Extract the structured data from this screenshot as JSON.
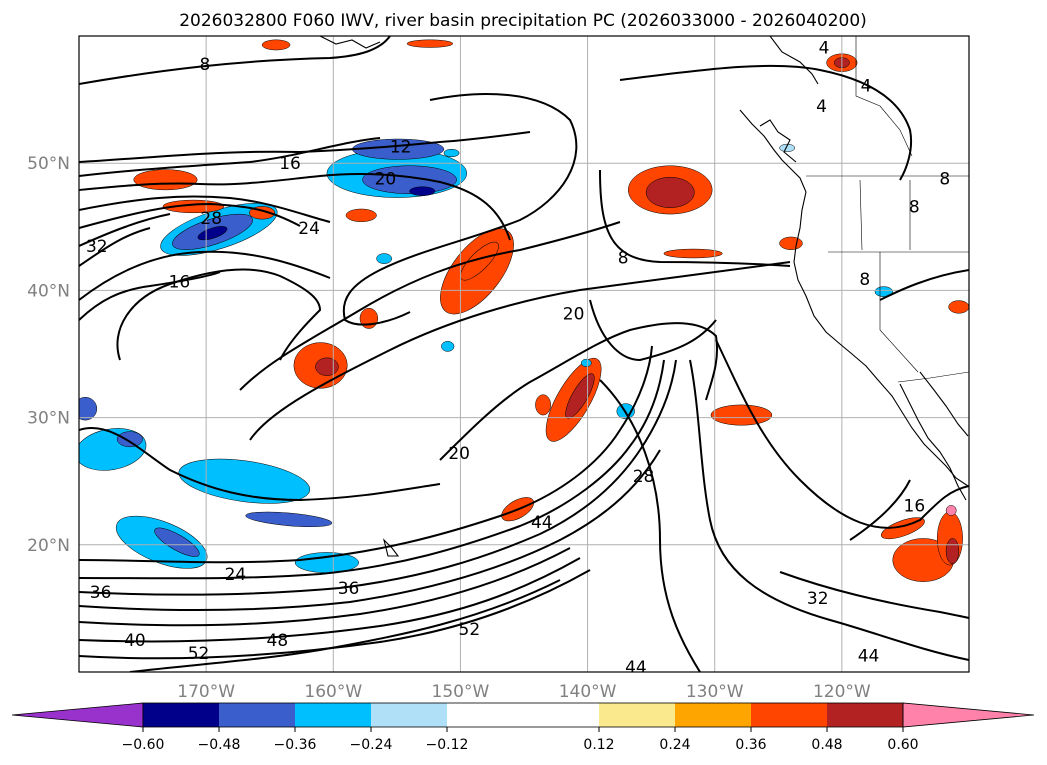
{
  "chart_data": {
    "type": "heatmap",
    "title": "2026032800 F060 IWV, river basin precipitation PC (2026033000 - 2026040200)",
    "xlabel": "",
    "ylabel": "",
    "x_axis": {
      "range": [
        -180,
        -110
      ],
      "ticks": [
        -170,
        -160,
        -150,
        -140,
        -130,
        -120
      ],
      "tick_labels": [
        "170°W",
        "160°W",
        "150°W",
        "140°W",
        "130°W",
        "120°W"
      ]
    },
    "y_axis": {
      "range": [
        10,
        60
      ],
      "ticks": [
        20,
        30,
        40,
        50
      ],
      "tick_labels": [
        "20°N",
        "30°N",
        "40°N",
        "50°N"
      ]
    },
    "grid": true,
    "colorbar": {
      "orientation": "horizontal",
      "extend": "both",
      "boundaries": [
        -0.72,
        -0.6,
        -0.48,
        -0.36,
        -0.24,
        -0.12,
        0.12,
        0.24,
        0.36,
        0.48,
        0.6,
        0.72
      ],
      "tick_values": [
        -0.6,
        -0.48,
        -0.36,
        -0.24,
        -0.12,
        0.12,
        0.24,
        0.36,
        0.48,
        0.6
      ],
      "tick_labels": [
        "−0.60",
        "−0.48",
        "−0.36",
        "−0.24",
        "−0.12",
        "0.12",
        "0.24",
        "0.36",
        "0.48",
        "0.60"
      ],
      "colors": [
        "#9932cc",
        "#00008b",
        "#3a5fcd",
        "#00bfff",
        "#afe0f8",
        "#ffffff",
        "#fbe98e",
        "#ffa500",
        "#ff4500",
        "#b22222",
        "#ff82ab"
      ]
    },
    "contours": {
      "field": "IWV",
      "color": "#000000",
      "labels": [
        {
          "text": "8",
          "lon": -170.1,
          "lat": 57.8
        },
        {
          "text": "12",
          "lon": -154.7,
          "lat": 51.3
        },
        {
          "text": "16",
          "lon": -163.4,
          "lat": 50.0
        },
        {
          "text": "20",
          "lon": -155.9,
          "lat": 48.8
        },
        {
          "text": "28",
          "lon": -169.6,
          "lat": 45.7
        },
        {
          "text": "24",
          "lon": -161.9,
          "lat": 44.9
        },
        {
          "text": "32",
          "lon": -178.6,
          "lat": 43.5
        },
        {
          "text": "16",
          "lon": -172.1,
          "lat": 40.7
        },
        {
          "text": "8",
          "lon": -137.2,
          "lat": 42.6
        },
        {
          "text": "8",
          "lon": -118.2,
          "lat": 40.9
        },
        {
          "text": "20",
          "lon": -141.1,
          "lat": 38.2
        },
        {
          "text": "20",
          "lon": -150.1,
          "lat": 27.2
        },
        {
          "text": "28",
          "lon": -135.6,
          "lat": 25.4
        },
        {
          "text": "44",
          "lon": -143.6,
          "lat": 21.8
        },
        {
          "text": "16",
          "lon": -114.3,
          "lat": 23.1
        },
        {
          "text": "24",
          "lon": -167.7,
          "lat": 17.7
        },
        {
          "text": "36",
          "lon": -178.3,
          "lat": 16.3
        },
        {
          "text": "36",
          "lon": -158.8,
          "lat": 16.6
        },
        {
          "text": "32",
          "lon": -121.9,
          "lat": 15.8
        },
        {
          "text": "40",
          "lon": -175.6,
          "lat": 12.5
        },
        {
          "text": "48",
          "lon": -164.4,
          "lat": 12.5
        },
        {
          "text": "52",
          "lon": -149.3,
          "lat": 13.4
        },
        {
          "text": "52",
          "lon": -170.6,
          "lat": 11.5
        },
        {
          "text": "44",
          "lon": -136.2,
          "lat": 10.4
        },
        {
          "text": "44",
          "lon": -117.9,
          "lat": 11.3
        },
        {
          "text": "4",
          "lon": -121.4,
          "lat": 59.1
        },
        {
          "text": "4",
          "lon": -118.1,
          "lat": 56.1
        },
        {
          "text": "4",
          "lon": -121.6,
          "lat": 54.5
        },
        {
          "text": "8",
          "lon": -114.3,
          "lat": 46.6
        },
        {
          "text": "8",
          "lon": -111.9,
          "lat": 48.8
        }
      ]
    },
    "precip_pc_regions": [
      {
        "center": [
          -169.0,
          44.8
        ],
        "rx": 4.8,
        "ry": 1.5,
        "rot": -18,
        "level": -0.36
      },
      {
        "center": [
          -169.5,
          44.6
        ],
        "rx": 3.3,
        "ry": 1.0,
        "rot": -18,
        "level": -0.48
      },
      {
        "center": [
          -169.5,
          44.5
        ],
        "rx": 1.2,
        "ry": 0.4,
        "rot": -18,
        "level": -0.6
      },
      {
        "center": [
          -155.0,
          49.2
        ],
        "rx": 5.5,
        "ry": 1.9,
        "rot": 0,
        "level": -0.36
      },
      {
        "center": [
          -154.0,
          48.7
        ],
        "rx": 3.7,
        "ry": 1.1,
        "rot": 0,
        "level": -0.48
      },
      {
        "center": [
          -153.0,
          47.8
        ],
        "rx": 1.0,
        "ry": 0.35,
        "rot": 0,
        "level": -0.6
      },
      {
        "center": [
          -154.9,
          51.1
        ],
        "rx": 3.6,
        "ry": 0.8,
        "rot": 0,
        "level": -0.48
      },
      {
        "center": [
          -167.0,
          25.0
        ],
        "rx": 5.2,
        "ry": 1.6,
        "rot": 8,
        "level": -0.36
      },
      {
        "center": [
          -163.5,
          22.0
        ],
        "rx": 3.4,
        "ry": 0.5,
        "rot": 5,
        "level": -0.48
      },
      {
        "center": [
          -173.5,
          20.2
        ],
        "rx": 3.8,
        "ry": 1.6,
        "rot": 22,
        "level": -0.36
      },
      {
        "center": [
          -172.3,
          20.2
        ],
        "rx": 2.0,
        "ry": 0.6,
        "rot": 30,
        "level": -0.48
      },
      {
        "center": [
          -177.5,
          27.5
        ],
        "rx": 2.8,
        "ry": 1.6,
        "rot": -10,
        "level": -0.36
      },
      {
        "center": [
          -176.0,
          28.3
        ],
        "rx": 1.0,
        "ry": 0.6,
        "rot": 0,
        "level": -0.48
      },
      {
        "center": [
          -179.5,
          30.7
        ],
        "rx": 0.9,
        "ry": 0.9,
        "rot": 0,
        "level": -0.48
      },
      {
        "center": [
          -160.5,
          18.6
        ],
        "rx": 2.5,
        "ry": 0.8,
        "rot": 0,
        "level": -0.36
      },
      {
        "center": [
          -171.0,
          46.6
        ],
        "rx": 2.4,
        "ry": 0.5,
        "rot": 0,
        "level": 0.36
      },
      {
        "center": [
          -173.2,
          48.7
        ],
        "rx": 2.5,
        "ry": 0.8,
        "rot": 0,
        "level": 0.36
      },
      {
        "center": [
          -148.7,
          41.5
        ],
        "rx": 4.0,
        "ry": 1.9,
        "rot": -52,
        "level": 0.36
      },
      {
        "center": [
          -148.5,
          42.3
        ],
        "rx": 2.0,
        "ry": 0.7,
        "rot": -45,
        "level": 0.36
      },
      {
        "center": [
          -161.0,
          34.1
        ],
        "rx": 2.1,
        "ry": 1.8,
        "rot": 0,
        "level": 0.36
      },
      {
        "center": [
          -160.5,
          34.0
        ],
        "rx": 0.9,
        "ry": 0.7,
        "rot": 0,
        "level": 0.48
      },
      {
        "center": [
          -133.5,
          47.9
        ],
        "rx": 3.3,
        "ry": 1.9,
        "rot": 0,
        "level": 0.36
      },
      {
        "center": [
          -133.5,
          47.7
        ],
        "rx": 1.9,
        "ry": 1.2,
        "rot": 0,
        "level": 0.48
      },
      {
        "center": [
          -141.1,
          31.4
        ],
        "rx": 3.7,
        "ry": 1.3,
        "rot": -60,
        "level": 0.36
      },
      {
        "center": [
          -140.6,
          31.7
        ],
        "rx": 2.0,
        "ry": 0.6,
        "rot": -60,
        "level": 0.48
      },
      {
        "center": [
          -127.9,
          30.2
        ],
        "rx": 2.4,
        "ry": 0.8,
        "rot": 0,
        "level": 0.36
      },
      {
        "center": [
          -145.5,
          22.8
        ],
        "rx": 1.4,
        "ry": 0.7,
        "rot": -30,
        "level": 0.36
      },
      {
        "center": [
          -113.6,
          18.8
        ],
        "rx": 2.4,
        "ry": 1.7,
        "rot": 0,
        "level": 0.36
      },
      {
        "center": [
          -111.5,
          20.5
        ],
        "rx": 1.0,
        "ry": 2.1,
        "rot": 0,
        "level": 0.36
      },
      {
        "center": [
          -111.3,
          19.5
        ],
        "rx": 0.5,
        "ry": 1.0,
        "rot": 0,
        "level": 0.48
      },
      {
        "center": [
          -111.4,
          22.7
        ],
        "rx": 0.4,
        "ry": 0.4,
        "rot": 0,
        "level": 0.6
      },
      {
        "center": [
          -115.2,
          21.3
        ],
        "rx": 1.8,
        "ry": 0.6,
        "rot": -20,
        "level": 0.36
      },
      {
        "center": [
          -120.0,
          57.9
        ],
        "rx": 1.2,
        "ry": 0.7,
        "rot": 0,
        "level": 0.36
      },
      {
        "center": [
          -120.0,
          57.9
        ],
        "rx": 0.6,
        "ry": 0.4,
        "rot": 0,
        "level": 0.48
      },
      {
        "center": [
          -164.5,
          59.3
        ],
        "rx": 1.1,
        "ry": 0.4,
        "rot": 0,
        "level": 0.36
      },
      {
        "center": [
          -165.6,
          46.1
        ],
        "rx": 1.0,
        "ry": 0.5,
        "rot": 0,
        "level": 0.36
      },
      {
        "center": [
          -157.8,
          45.9
        ],
        "rx": 1.2,
        "ry": 0.5,
        "rot": 0,
        "level": 0.36
      },
      {
        "center": [
          -152.4,
          59.4
        ],
        "rx": 1.8,
        "ry": 0.3,
        "rot": 0,
        "level": 0.36
      },
      {
        "center": [
          -131.7,
          42.9
        ],
        "rx": 2.3,
        "ry": 0.35,
        "rot": 0,
        "level": 0.36
      },
      {
        "center": [
          -143.5,
          31.0
        ],
        "rx": 0.6,
        "ry": 0.8,
        "rot": 0,
        "level": 0.36
      },
      {
        "center": [
          -157.2,
          37.8
        ],
        "rx": 0.7,
        "ry": 0.8,
        "rot": 0,
        "level": 0.36
      },
      {
        "center": [
          -124.0,
          43.7
        ],
        "rx": 0.9,
        "ry": 0.5,
        "rot": 0,
        "level": 0.36
      },
      {
        "center": [
          -110.8,
          38.7
        ],
        "rx": 0.8,
        "ry": 0.5,
        "rot": 0,
        "level": 0.36
      },
      {
        "center": [
          -151.0,
          35.6
        ],
        "rx": 0.5,
        "ry": 0.4,
        "rot": 0,
        "level": -0.36
      },
      {
        "center": [
          -140.1,
          34.3
        ],
        "rx": 0.4,
        "ry": 0.3,
        "rot": 0,
        "level": -0.36
      },
      {
        "center": [
          -137.0,
          30.5
        ],
        "rx": 0.7,
        "ry": 0.6,
        "rot": 0,
        "level": -0.36
      },
      {
        "center": [
          -156.0,
          42.5
        ],
        "rx": 0.6,
        "ry": 0.4,
        "rot": 0,
        "level": -0.36
      },
      {
        "center": [
          -150.7,
          50.8
        ],
        "rx": 0.6,
        "ry": 0.3,
        "rot": 0,
        "level": -0.36
      },
      {
        "center": [
          -116.7,
          39.9
        ],
        "rx": 0.7,
        "ry": 0.4,
        "rot": 0,
        "level": -0.36
      },
      {
        "center": [
          -124.3,
          51.2
        ],
        "rx": 0.6,
        "ry": 0.3,
        "rot": 0,
        "level": -0.24
      }
    ]
  }
}
